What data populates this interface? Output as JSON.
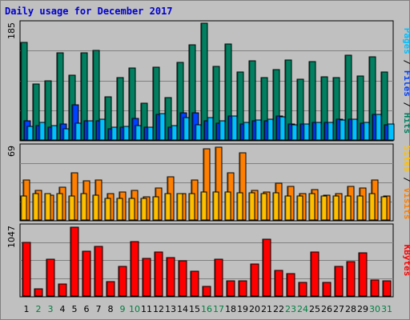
{
  "title": "Daily usage for December 2017",
  "colors": {
    "background": "#c0c0c0",
    "pages": "#00c0ff",
    "files": "#0040ff",
    "hits": "#008060",
    "sites": "#ffc000",
    "visits": "#ff8000",
    "kbytes": "#ff0000",
    "weekend_label": "#008040",
    "weekday_label": "#000000"
  },
  "chart_data": [
    {
      "type": "bar",
      "name": "hits_files_pages",
      "ymax_label": "185",
      "ylim": [
        0,
        185
      ],
      "right_labels": [
        "Hits",
        "Files",
        "Pages"
      ],
      "categories": [
        "1",
        "2",
        "3",
        "4",
        "5",
        "6",
        "7",
        "8",
        "9",
        "10",
        "11",
        "12",
        "13",
        "14",
        "15",
        "16",
        "17",
        "18",
        "19",
        "20",
        "21",
        "22",
        "23",
        "24",
        "25",
        "26",
        "27",
        "28",
        "29",
        "30",
        "31"
      ],
      "series": [
        {
          "name": "Hits",
          "values": [
            152,
            87,
            93,
            136,
            101,
            136,
            140,
            67,
            98,
            112,
            57,
            114,
            66,
            121,
            149,
            182,
            115,
            150,
            106,
            124,
            98,
            110,
            125,
            95,
            123,
            99,
            98,
            132,
            100,
            130,
            106
          ]
        },
        {
          "name": "Files",
          "values": [
            30,
            22,
            20,
            25,
            55,
            30,
            30,
            17,
            20,
            34,
            20,
            40,
            20,
            42,
            43,
            30,
            26,
            38,
            25,
            30,
            30,
            38,
            25,
            25,
            28,
            27,
            32,
            32,
            26,
            40,
            24
          ]
        },
        {
          "name": "Pages",
          "values": [
            21,
            28,
            23,
            18,
            26,
            30,
            32,
            20,
            21,
            22,
            20,
            41,
            22,
            35,
            24,
            35,
            30,
            38,
            27,
            31,
            32,
            36,
            24,
            25,
            27,
            28,
            31,
            32,
            27,
            40,
            25
          ]
        }
      ]
    },
    {
      "type": "bar",
      "name": "visits_sites",
      "ymax_label": "69",
      "ylim": [
        0,
        69
      ],
      "right_labels": [
        "Visits",
        "Sites"
      ],
      "categories": [
        "1",
        "2",
        "3",
        "4",
        "5",
        "6",
        "7",
        "8",
        "9",
        "10",
        "11",
        "12",
        "13",
        "14",
        "15",
        "16",
        "17",
        "18",
        "19",
        "20",
        "21",
        "22",
        "23",
        "24",
        "25",
        "26",
        "27",
        "28",
        "29",
        "30",
        "31"
      ],
      "series": [
        {
          "name": "Visits",
          "values": [
            37,
            27,
            23,
            30,
            43,
            36,
            37,
            24,
            26,
            27,
            21,
            29,
            40,
            24,
            37,
            65,
            67,
            43,
            62,
            27,
            26,
            34,
            31,
            24,
            28,
            23,
            24,
            31,
            29,
            37,
            22
          ]
        },
        {
          "name": "Sites",
          "values": [
            22,
            24,
            24,
            24,
            22,
            24,
            23,
            20,
            20,
            20,
            20,
            21,
            24,
            24,
            24,
            26,
            26,
            26,
            25,
            25,
            24,
            25,
            22,
            22,
            24,
            22,
            22,
            22,
            22,
            24,
            21
          ]
        }
      ]
    },
    {
      "type": "bar",
      "name": "kbytes",
      "ymax_label": "1047",
      "ylim": [
        0,
        1047
      ],
      "right_labels": [
        "KBytes"
      ],
      "categories": [
        "1",
        "2",
        "3",
        "4",
        "5",
        "6",
        "7",
        "8",
        "9",
        "10",
        "11",
        "12",
        "13",
        "14",
        "15",
        "16",
        "17",
        "18",
        "19",
        "20",
        "21",
        "22",
        "23",
        "24",
        "25",
        "26",
        "27",
        "28",
        "29",
        "30",
        "31"
      ],
      "series": [
        {
          "name": "KBytes",
          "values": [
            785,
            105,
            545,
            180,
            1008,
            660,
            730,
            215,
            435,
            800,
            550,
            650,
            560,
            520,
            365,
            145,
            545,
            225,
            225,
            465,
            840,
            380,
            325,
            200,
            650,
            200,
            440,
            505,
            630,
            240,
            225
          ]
        }
      ]
    }
  ],
  "x_axis": {
    "days": [
      "1",
      "2",
      "3",
      "4",
      "5",
      "6",
      "7",
      "8",
      "9",
      "10",
      "11",
      "12",
      "13",
      "14",
      "15",
      "16",
      "17",
      "18",
      "19",
      "20",
      "21",
      "22",
      "23",
      "24",
      "25",
      "26",
      "27",
      "28",
      "29",
      "30",
      "31"
    ],
    "weekend_days": [
      "2",
      "3",
      "9",
      "10",
      "16",
      "17",
      "23",
      "24",
      "30",
      "31"
    ]
  }
}
